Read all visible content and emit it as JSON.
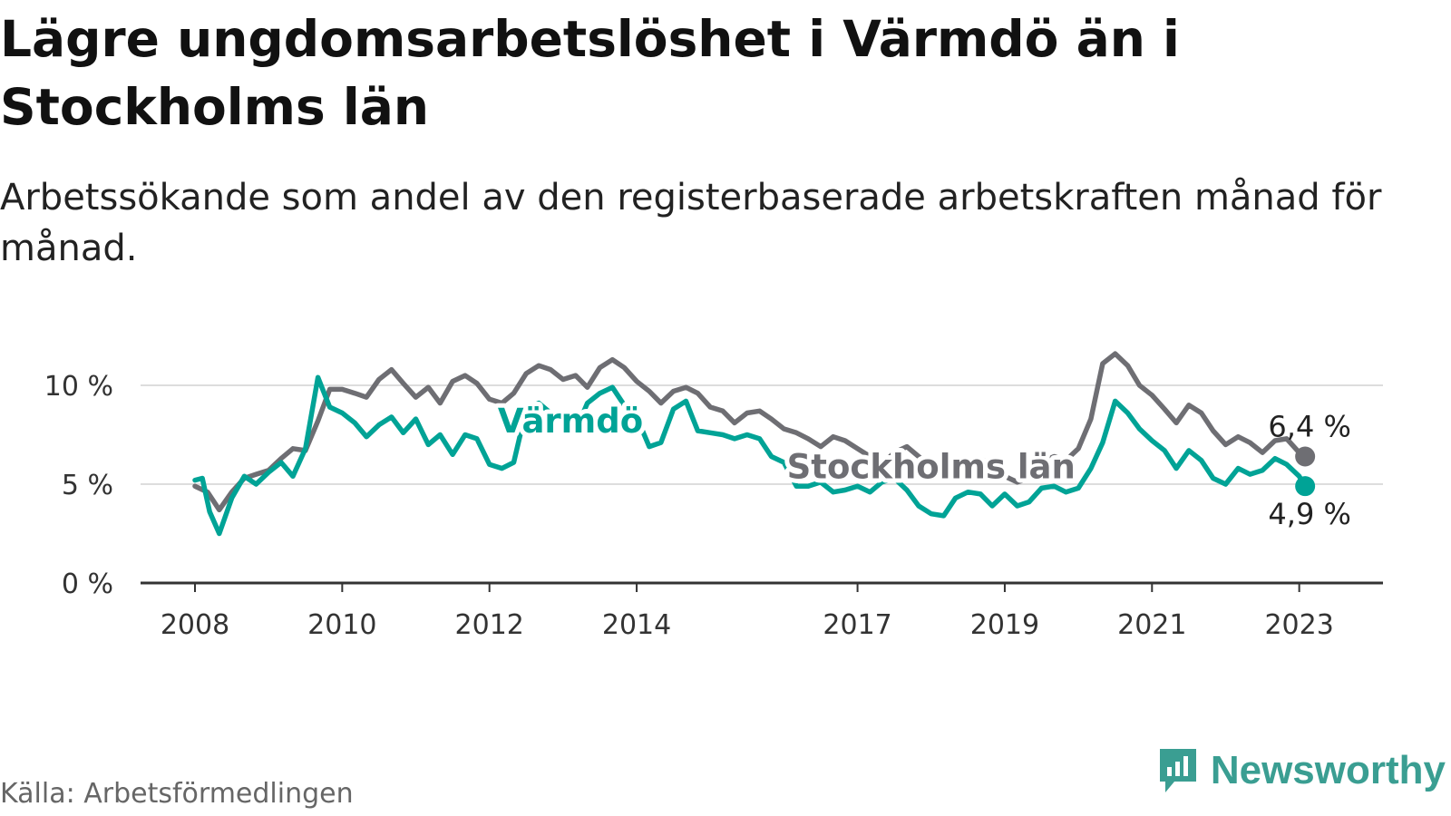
{
  "title": "Lägre ungdomsarbetslöshet i Värmdö än i Stockholms län",
  "subtitle": "Arbetssökande som andel av den registerbaserade arbetskraften månad för månad.",
  "source": "Källa: Arbetsförmedlingen",
  "brand": "Newsworthy",
  "colors": {
    "varmdo": "#00a396",
    "stockholm": "#6e6e73",
    "grid": "#dddddd",
    "axis": "#333333",
    "brand": "#3a9e92"
  },
  "chart_data": {
    "type": "line",
    "xlim": [
      2008.0,
      2023.3
    ],
    "ylim": [
      0,
      10
    ],
    "y_ticks": [
      {
        "value": 0,
        "label": "0 %"
      },
      {
        "value": 5,
        "label": "5 %"
      },
      {
        "value": 10,
        "label": "10 %"
      }
    ],
    "x_ticks": [
      {
        "value": 2008,
        "label": "2008"
      },
      {
        "value": 2010,
        "label": "2010"
      },
      {
        "value": 2012,
        "label": "2012"
      },
      {
        "value": 2014,
        "label": "2014"
      },
      {
        "value": 2017,
        "label": "2017"
      },
      {
        "value": 2019,
        "label": "2019"
      },
      {
        "value": 2021,
        "label": "2021"
      },
      {
        "value": 2023,
        "label": "2023"
      }
    ],
    "series": [
      {
        "name": "Stockholms län",
        "key": "stockholm",
        "end_label": "6,4 %",
        "points": [
          [
            2008.0,
            4.9
          ],
          [
            2008.17,
            4.6
          ],
          [
            2008.33,
            3.7
          ],
          [
            2008.5,
            4.6
          ],
          [
            2008.67,
            5.3
          ],
          [
            2008.83,
            5.5
          ],
          [
            2009.0,
            5.7
          ],
          [
            2009.17,
            6.3
          ],
          [
            2009.33,
            6.8
          ],
          [
            2009.5,
            6.7
          ],
          [
            2009.67,
            8.2
          ],
          [
            2009.83,
            9.8
          ],
          [
            2010.0,
            9.8
          ],
          [
            2010.17,
            9.6
          ],
          [
            2010.33,
            9.4
          ],
          [
            2010.5,
            10.3
          ],
          [
            2010.67,
            10.8
          ],
          [
            2010.83,
            10.1
          ],
          [
            2011.0,
            9.4
          ],
          [
            2011.17,
            9.9
          ],
          [
            2011.33,
            9.1
          ],
          [
            2011.5,
            10.2
          ],
          [
            2011.67,
            10.5
          ],
          [
            2011.83,
            10.1
          ],
          [
            2012.0,
            9.3
          ],
          [
            2012.17,
            9.1
          ],
          [
            2012.33,
            9.6
          ],
          [
            2012.5,
            10.6
          ],
          [
            2012.67,
            11.0
          ],
          [
            2012.83,
            10.8
          ],
          [
            2013.0,
            10.3
          ],
          [
            2013.17,
            10.5
          ],
          [
            2013.33,
            9.9
          ],
          [
            2013.5,
            10.9
          ],
          [
            2013.67,
            11.3
          ],
          [
            2013.83,
            10.9
          ],
          [
            2014.0,
            10.2
          ],
          [
            2014.17,
            9.7
          ],
          [
            2014.33,
            9.1
          ],
          [
            2014.5,
            9.7
          ],
          [
            2014.67,
            9.9
          ],
          [
            2014.83,
            9.6
          ],
          [
            2015.0,
            8.9
          ],
          [
            2015.17,
            8.7
          ],
          [
            2015.33,
            8.1
          ],
          [
            2015.5,
            8.6
          ],
          [
            2015.67,
            8.7
          ],
          [
            2015.83,
            8.3
          ],
          [
            2016.0,
            7.8
          ],
          [
            2016.17,
            7.6
          ],
          [
            2016.33,
            7.3
          ],
          [
            2016.5,
            6.9
          ],
          [
            2016.67,
            7.4
          ],
          [
            2016.83,
            7.2
          ],
          [
            2017.0,
            6.8
          ],
          [
            2017.17,
            6.4
          ],
          [
            2017.33,
            6.0
          ],
          [
            2017.5,
            6.6
          ],
          [
            2017.67,
            6.9
          ],
          [
            2017.83,
            6.4
          ],
          [
            2018.0,
            5.9
          ],
          [
            2018.17,
            5.6
          ],
          [
            2018.33,
            5.3
          ],
          [
            2018.5,
            6.0
          ],
          [
            2018.67,
            6.3
          ],
          [
            2018.83,
            5.9
          ],
          [
            2019.0,
            5.4
          ],
          [
            2019.17,
            5.1
          ],
          [
            2019.33,
            5.3
          ],
          [
            2019.5,
            6.1
          ],
          [
            2019.67,
            6.4
          ],
          [
            2019.83,
            6.2
          ],
          [
            2020.0,
            6.8
          ],
          [
            2020.17,
            8.3
          ],
          [
            2020.33,
            11.1
          ],
          [
            2020.5,
            11.6
          ],
          [
            2020.67,
            11.0
          ],
          [
            2020.83,
            10.0
          ],
          [
            2021.0,
            9.5
          ],
          [
            2021.17,
            8.8
          ],
          [
            2021.33,
            8.1
          ],
          [
            2021.5,
            9.0
          ],
          [
            2021.67,
            8.6
          ],
          [
            2021.83,
            7.7
          ],
          [
            2022.0,
            7.0
          ],
          [
            2022.17,
            7.4
          ],
          [
            2022.33,
            7.1
          ],
          [
            2022.5,
            6.6
          ],
          [
            2022.67,
            7.2
          ],
          [
            2022.83,
            7.3
          ],
          [
            2023.0,
            6.6
          ],
          [
            2023.08,
            6.4
          ]
        ]
      },
      {
        "name": "Värmdö",
        "key": "varmdo",
        "end_label": "4,9 %",
        "points": [
          [
            2008.0,
            5.2
          ],
          [
            2008.1,
            5.3
          ],
          [
            2008.2,
            3.6
          ],
          [
            2008.33,
            2.5
          ],
          [
            2008.5,
            4.3
          ],
          [
            2008.67,
            5.4
          ],
          [
            2008.83,
            5.0
          ],
          [
            2009.0,
            5.6
          ],
          [
            2009.17,
            6.1
          ],
          [
            2009.33,
            5.4
          ],
          [
            2009.5,
            6.8
          ],
          [
            2009.67,
            10.4
          ],
          [
            2009.83,
            8.9
          ],
          [
            2010.0,
            8.6
          ],
          [
            2010.17,
            8.1
          ],
          [
            2010.33,
            7.4
          ],
          [
            2010.5,
            8.0
          ],
          [
            2010.67,
            8.4
          ],
          [
            2010.83,
            7.6
          ],
          [
            2011.0,
            8.3
          ],
          [
            2011.17,
            7.0
          ],
          [
            2011.33,
            7.5
          ],
          [
            2011.5,
            6.5
          ],
          [
            2011.67,
            7.5
          ],
          [
            2011.83,
            7.3
          ],
          [
            2012.0,
            6.0
          ],
          [
            2012.17,
            5.8
          ],
          [
            2012.33,
            6.1
          ],
          [
            2012.5,
            8.8
          ],
          [
            2012.67,
            9.1
          ],
          [
            2012.83,
            8.6
          ],
          [
            2013.0,
            8.5
          ],
          [
            2013.17,
            7.7
          ],
          [
            2013.33,
            9.1
          ],
          [
            2013.5,
            9.6
          ],
          [
            2013.67,
            9.9
          ],
          [
            2013.83,
            9.0
          ],
          [
            2014.0,
            8.4
          ],
          [
            2014.17,
            6.9
          ],
          [
            2014.33,
            7.1
          ],
          [
            2014.5,
            8.8
          ],
          [
            2014.67,
            9.2
          ],
          [
            2014.83,
            7.7
          ],
          [
            2015.0,
            7.6
          ],
          [
            2015.17,
            7.5
          ],
          [
            2015.33,
            7.3
          ],
          [
            2015.5,
            7.5
          ],
          [
            2015.67,
            7.3
          ],
          [
            2015.83,
            6.4
          ],
          [
            2016.0,
            6.1
          ],
          [
            2016.17,
            4.9
          ],
          [
            2016.33,
            4.9
          ],
          [
            2016.5,
            5.1
          ],
          [
            2016.67,
            4.6
          ],
          [
            2016.83,
            4.7
          ],
          [
            2017.0,
            4.9
          ],
          [
            2017.17,
            4.6
          ],
          [
            2017.33,
            5.1
          ],
          [
            2017.5,
            5.3
          ],
          [
            2017.67,
            4.7
          ],
          [
            2017.83,
            3.9
          ],
          [
            2018.0,
            3.5
          ],
          [
            2018.17,
            3.4
          ],
          [
            2018.33,
            4.3
          ],
          [
            2018.5,
            4.6
          ],
          [
            2018.67,
            4.5
          ],
          [
            2018.83,
            3.9
          ],
          [
            2019.0,
            4.5
          ],
          [
            2019.17,
            3.9
          ],
          [
            2019.33,
            4.1
          ],
          [
            2019.5,
            4.8
          ],
          [
            2019.67,
            4.9
          ],
          [
            2019.83,
            4.6
          ],
          [
            2020.0,
            4.8
          ],
          [
            2020.17,
            5.8
          ],
          [
            2020.33,
            7.1
          ],
          [
            2020.5,
            9.2
          ],
          [
            2020.67,
            8.6
          ],
          [
            2020.83,
            7.8
          ],
          [
            2021.0,
            7.2
          ],
          [
            2021.17,
            6.7
          ],
          [
            2021.33,
            5.8
          ],
          [
            2021.5,
            6.7
          ],
          [
            2021.67,
            6.2
          ],
          [
            2021.83,
            5.3
          ],
          [
            2022.0,
            5.0
          ],
          [
            2022.17,
            5.8
          ],
          [
            2022.33,
            5.5
          ],
          [
            2022.5,
            5.7
          ],
          [
            2022.67,
            6.3
          ],
          [
            2022.83,
            6.0
          ],
          [
            2023.0,
            5.4
          ],
          [
            2023.08,
            4.9
          ]
        ]
      }
    ],
    "annotations": [
      {
        "text": "Värmdö",
        "series": "varmdo",
        "x": 2013.1,
        "y": 8.2
      },
      {
        "text": "Stockholms län",
        "series": "stockholm",
        "x": 2018.0,
        "y": 5.9
      }
    ]
  }
}
